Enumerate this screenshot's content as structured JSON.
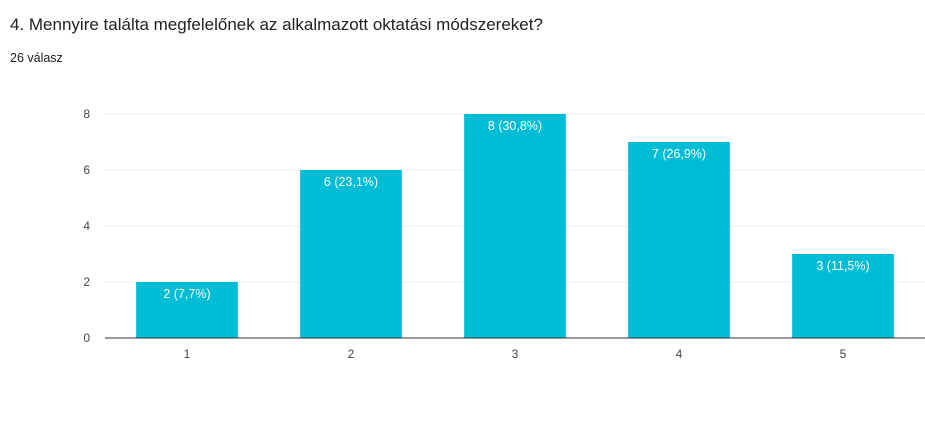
{
  "question": {
    "title": "4. Mennyire találta megfelelőnek az alkalmazott oktatási módszereket?",
    "response_count": "26 válasz"
  },
  "colors": {
    "bar": "#00bcd4",
    "grid": "#ebebeb",
    "axis": "#333333",
    "tick_text": "#444444",
    "label_text": "#ffffff"
  },
  "chart_data": {
    "type": "bar",
    "title": "",
    "xlabel": "",
    "ylabel": "",
    "categories": [
      "1",
      "2",
      "3",
      "4",
      "5"
    ],
    "values": [
      2,
      6,
      8,
      7,
      3
    ],
    "data_labels": [
      "2 (7,7%)",
      "6 (23,1%)",
      "8 (30,8%)",
      "7 (26,9%)",
      "3 (11,5%)"
    ],
    "ylim": [
      0,
      8
    ],
    "yticks": [
      "0",
      "2",
      "4",
      "6",
      "8"
    ],
    "grid": true,
    "legend": "none"
  }
}
